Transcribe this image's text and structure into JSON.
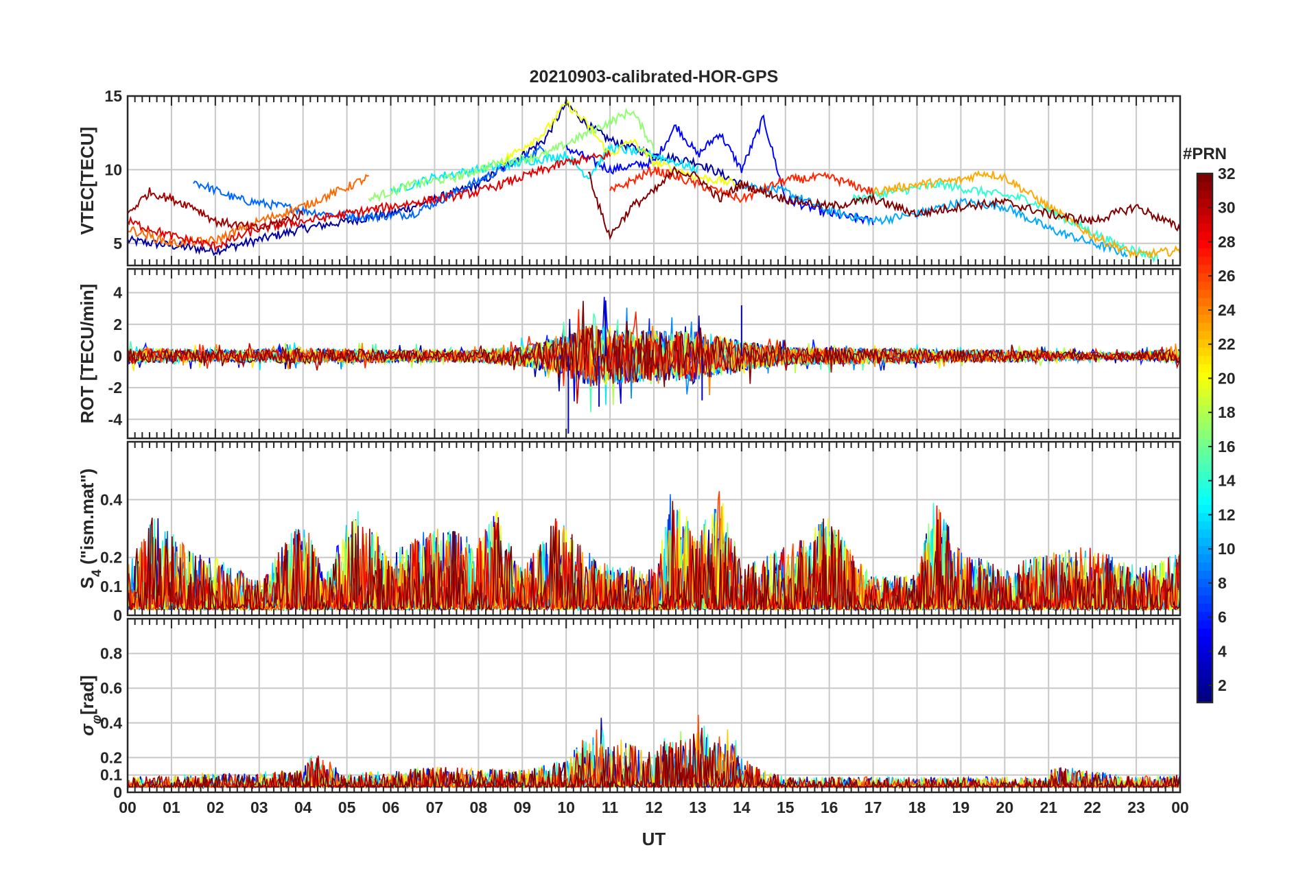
{
  "title": "20210903-calibrated-HOR-GPS",
  "chart_data": {
    "type": "line",
    "title": "20210903-calibrated-HOR-GPS",
    "xlabel": "UT",
    "x_tick_labels": [
      "00",
      "01",
      "02",
      "03",
      "04",
      "05",
      "06",
      "07",
      "08",
      "09",
      "10",
      "11",
      "12",
      "13",
      "14",
      "15",
      "16",
      "17",
      "18",
      "19",
      "20",
      "21",
      "22",
      "23",
      "00"
    ],
    "xlim_hours": [
      0,
      24
    ],
    "colorbar": {
      "title": "#PRN",
      "tick_values": [
        2,
        4,
        6,
        8,
        10,
        12,
        14,
        16,
        18,
        20,
        22,
        24,
        26,
        28,
        30,
        32
      ],
      "tick_labels": [
        "2",
        "4",
        "6",
        "8",
        "10",
        "12",
        "14",
        "16",
        "18",
        "20",
        "22",
        "24",
        "26",
        "28",
        "30",
        "32"
      ],
      "range": [
        1,
        32
      ],
      "colormap": "jet",
      "colors": [
        "#00008f",
        "#0000ff",
        "#0080ff",
        "#00ffff",
        "#80ff80",
        "#ffff00",
        "#ff8000",
        "#ff0000",
        "#800000"
      ]
    },
    "panels": [
      {
        "ylabel": "VTEC[TECU]",
        "ylim": [
          3.5,
          15
        ],
        "yticks": [
          5,
          10,
          15
        ],
        "ytick_labels": [
          "5",
          "10",
          "15"
        ],
        "series": [
          {
            "prn": 2,
            "name": "PRN 02",
            "x": [
              0.0,
              2.0,
              4.0,
              6.0,
              8.0,
              9.5,
              10.0,
              10.5,
              11.0,
              12.0,
              13.0,
              14.0
            ],
            "y": [
              5.2,
              4.5,
              6.0,
              7.0,
              9.0,
              12.0,
              14.5,
              13.0,
              12.0,
              11.0,
              10.5,
              9.0
            ]
          },
          {
            "prn": 5,
            "name": "PRN 05",
            "x": [
              10.0,
              11.0,
              12.0,
              12.5,
              13.0,
              13.5,
              14.0,
              14.5,
              15.0,
              16.0,
              17.0
            ],
            "y": [
              11.5,
              10.0,
              10.5,
              13.0,
              11.0,
              12.5,
              10.0,
              13.5,
              8.0,
              7.0,
              6.5
            ]
          },
          {
            "prn": 8,
            "name": "PRN 08",
            "x": [
              1.5,
              2.5,
              3.5,
              4.5,
              5.5,
              6.5,
              7.5,
              8.5,
              9.5
            ],
            "y": [
              9.2,
              8.0,
              7.5,
              7.0,
              6.8,
              7.0,
              8.5,
              10.0,
              11.5
            ]
          },
          {
            "prn": 10,
            "name": "PRN 10",
            "x": [
              14.0,
              15.0,
              16.0,
              17.0,
              18.0,
              19.0,
              20.0,
              21.0,
              22.0,
              22.8
            ],
            "y": [
              9.0,
              8.5,
              7.2,
              6.5,
              7.0,
              7.8,
              7.5,
              6.0,
              5.0,
              4.3
            ]
          },
          {
            "prn": 12,
            "name": "PRN 12",
            "x": [
              6.0,
              7.0,
              8.0,
              9.0,
              10.0,
              10.5,
              11.0,
              12.0,
              13.0
            ],
            "y": [
              8.5,
              9.5,
              10.0,
              10.5,
              11.0,
              9.5,
              11.5,
              11.0,
              10.0
            ]
          },
          {
            "prn": 14,
            "name": "PRN 14",
            "x": [
              16.5,
              17.5,
              18.5,
              19.5,
              20.5,
              21.5,
              22.5,
              23.5
            ],
            "y": [
              8.0,
              8.5,
              9.0,
              8.5,
              8.0,
              6.5,
              5.0,
              4.0
            ]
          },
          {
            "prn": 17,
            "name": "PRN 17",
            "x": [
              5.5,
              6.5,
              7.5,
              8.5,
              9.5,
              10.5,
              11.5,
              12.0
            ],
            "y": [
              8.0,
              9.0,
              9.5,
              10.5,
              11.0,
              12.5,
              14.0,
              11.5
            ]
          },
          {
            "prn": 20,
            "name": "PRN 20",
            "x": [
              8.5,
              9.0,
              9.5,
              10.0,
              10.5,
              11.0,
              11.5,
              12.0,
              13.0,
              14.0
            ],
            "y": [
              10.5,
              11.5,
              12.5,
              14.5,
              13.0,
              11.0,
              12.0,
              10.5,
              9.5,
              9.0
            ]
          },
          {
            "prn": 23,
            "name": "PRN 23",
            "x": [
              17.0,
              18.0,
              19.0,
              19.5,
              20.0,
              21.0,
              22.0,
              23.0,
              24.0
            ],
            "y": [
              8.5,
              9.0,
              9.3,
              9.8,
              9.5,
              7.5,
              5.5,
              4.2,
              4.5
            ]
          },
          {
            "prn": 25,
            "name": "PRN 25",
            "x": [
              0.0,
              1.0,
              2.0,
              3.0,
              4.0,
              5.0,
              5.5
            ],
            "y": [
              6.0,
              5.0,
              5.2,
              6.5,
              7.5,
              8.8,
              9.5
            ]
          },
          {
            "prn": 27,
            "name": "PRN 27",
            "x": [
              11.0,
              12.0,
              13.0,
              14.0,
              15.0,
              16.0,
              17.0
            ],
            "y": [
              8.5,
              10.0,
              9.0,
              8.0,
              9.3,
              9.5,
              8.5
            ]
          },
          {
            "prn": 29,
            "name": "PRN 29",
            "x": [
              0.0,
              1.0,
              2.0,
              3.0,
              4.0,
              5.0,
              6.0,
              7.0,
              8.0,
              9.0,
              10.0,
              11.0
            ],
            "y": [
              6.5,
              5.5,
              4.8,
              6.0,
              6.5,
              7.0,
              7.5,
              8.0,
              8.5,
              9.5,
              10.5,
              11.0
            ]
          },
          {
            "prn": 31,
            "name": "PRN 31",
            "x": [
              0.0,
              0.5,
              1.0,
              1.5,
              2.0,
              3.0,
              4.0
            ],
            "y": [
              7.0,
              8.5,
              8.0,
              7.5,
              6.5,
              6.0,
              7.0
            ]
          },
          {
            "prn": 32,
            "name": "PRN 32",
            "x": [
              10.5,
              10.8,
              11.0,
              11.5,
              12.0,
              12.5,
              13.0,
              13.5,
              14.0,
              15.0,
              16.0,
              17.0,
              18.0,
              19.0,
              20.0,
              21.0,
              22.0,
              23.0,
              24.0
            ],
            "y": [
              10.0,
              7.0,
              5.5,
              7.5,
              8.5,
              10.0,
              9.5,
              8.0,
              9.0,
              8.0,
              7.5,
              8.0,
              7.0,
              7.5,
              7.8,
              7.0,
              6.5,
              7.5,
              6.0
            ]
          }
        ]
      },
      {
        "ylabel": "ROT [TECU/min]",
        "ylim": [
          -5.2,
          5.5
        ],
        "yticks": [
          -4,
          -2,
          0,
          2,
          4
        ],
        "ytick_labels": [
          "-4",
          "-2",
          "0",
          "2",
          "4"
        ],
        "profile": {
          "description": "noise amplitude envelope vs UT hour",
          "x": [
            0,
            2,
            4,
            6,
            8,
            9,
            10,
            10.5,
            11,
            12,
            13,
            14,
            15,
            16,
            17,
            18,
            19,
            20,
            21,
            22,
            23,
            24
          ],
          "amplitude": [
            0.6,
            0.5,
            0.6,
            0.5,
            0.5,
            0.8,
            1.6,
            2.5,
            2.3,
            2.0,
            2.0,
            1.2,
            0.7,
            0.7,
            0.6,
            0.6,
            0.5,
            0.5,
            0.4,
            0.3,
            0.3,
            0.6
          ]
        },
        "notable_values": [
          {
            "x": 10.05,
            "y": -4.9
          },
          {
            "x": 10.75,
            "y": -3.2
          },
          {
            "x": 10.9,
            "y": 3.5
          },
          {
            "x": 14.0,
            "y": 3.2
          },
          {
            "x": 13.1,
            "y": -2.8
          }
        ]
      },
      {
        "ylabel_main": "S",
        "ylabel_sub": "4",
        "ylabel_rest": " (\"ism.mat\")",
        "ylim": [
          0,
          0.6
        ],
        "yticks": [
          0,
          0.1,
          0.2,
          0.4
        ],
        "ytick_labels": [
          "0",
          "0.1",
          "0.2",
          "0.4"
        ],
        "profile": {
          "description": "typical maximum S4 vs UT hour",
          "x": [
            0,
            0.6,
            1.5,
            2,
            3,
            4,
            4.5,
            5,
            5.3,
            6,
            7,
            8,
            8.4,
            9,
            9.8,
            10.5,
            11,
            12,
            12.4,
            13,
            13.5,
            14,
            15,
            16,
            16.6,
            17,
            18,
            18.4,
            19,
            20,
            21,
            22,
            23,
            24
          ],
          "peak": [
            0.15,
            0.33,
            0.2,
            0.18,
            0.1,
            0.33,
            0.12,
            0.3,
            0.35,
            0.2,
            0.3,
            0.25,
            0.35,
            0.15,
            0.33,
            0.2,
            0.15,
            0.15,
            0.42,
            0.25,
            0.43,
            0.15,
            0.22,
            0.33,
            0.18,
            0.12,
            0.12,
            0.4,
            0.2,
            0.15,
            0.2,
            0.22,
            0.15,
            0.2
          ]
        }
      },
      {
        "ylabel_main": "σ",
        "ylabel_sub": "φ",
        "ylabel_rest": "[rad]",
        "ylim": [
          0,
          1
        ],
        "yticks": [
          0,
          0.1,
          0.2,
          0.4,
          0.6,
          0.8
        ],
        "ytick_labels": [
          "0",
          "0.1",
          "0.2",
          "0.4",
          "0.6",
          "0.8"
        ],
        "profile": {
          "description": "typical maximum sigma-phi vs UT hour",
          "x": [
            0,
            2,
            4,
            4.2,
            5,
            7,
            9,
            10,
            10.8,
            11,
            11.5,
            12,
            12.5,
            12.8,
            13,
            13.3,
            13.8,
            14,
            14.5,
            15,
            18,
            21,
            21.1,
            23,
            24
          ],
          "peak": [
            0.06,
            0.08,
            0.1,
            0.22,
            0.08,
            0.12,
            0.1,
            0.16,
            0.4,
            0.3,
            0.25,
            0.2,
            0.38,
            0.3,
            0.44,
            0.28,
            0.35,
            0.18,
            0.1,
            0.06,
            0.06,
            0.06,
            0.13,
            0.06,
            0.08
          ]
        }
      }
    ]
  }
}
